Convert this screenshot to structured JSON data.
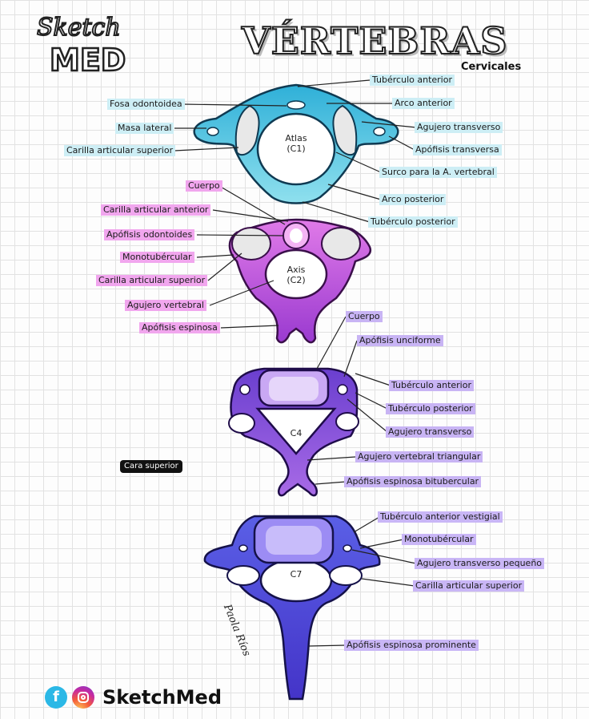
{
  "brand": {
    "logo_top": "Sketch",
    "logo_bottom": "MED",
    "footer_name": "SketchMed"
  },
  "title": "VÉRTEBRAS",
  "subtitle": "Cervicales",
  "signature": "Paola Ríos",
  "cara_superior": "Cara superior",
  "atlas": {
    "name": "Atlas",
    "code": "(C1)",
    "labels_left": [
      "Fosa odontoidea",
      "Masa lateral",
      "Carilla articular superior"
    ],
    "labels_right": [
      "Tubérculo anterior",
      "Arco anterior",
      "Agujero transverso",
      "Apófisis transversa",
      "Surco para la A. vertebral",
      "Arco posterior",
      "Tubérculo posterior"
    ]
  },
  "axis": {
    "name": "Axis",
    "code": "(C2)",
    "labels": [
      "Cuerpo",
      "Carilla articular anterior",
      "Apófisis odontoides",
      "Monotubércular",
      "Carilla articular superior",
      "Agujero vertebral",
      "Apófisis espinosa"
    ]
  },
  "c4": {
    "name": "C4",
    "labels": [
      "Cuerpo",
      "Apófisis unciforme",
      "Tubérculo anterior",
      "Tubérculo posterior",
      "Agujero transverso",
      "Agujero vertebral triangular",
      "Apófisis espinosa bitubercular"
    ]
  },
  "c7": {
    "name": "C7",
    "labels": [
      "Tubérculo anterior vestigial",
      "Monotubércular",
      "Agujero transverso pequeño",
      "Carilla articular superior",
      "Apófisis espinosa prominente"
    ]
  },
  "colors": {
    "atlas": "#46c0dc",
    "axis": "#c65ad8",
    "c4": "#8a5fe0",
    "c7": "#6f6ae6"
  }
}
